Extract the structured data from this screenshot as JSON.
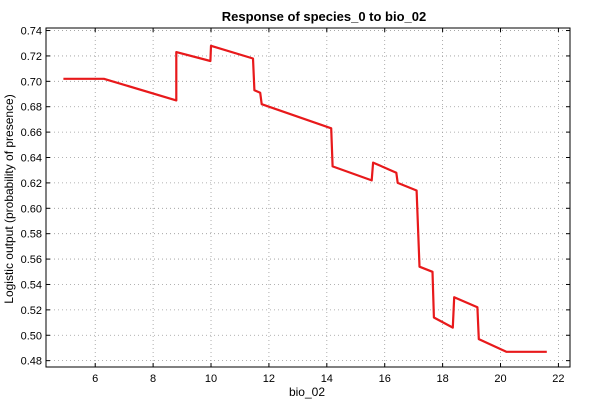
{
  "chart_data": {
    "type": "line",
    "title": "Response of species_0 to bio_02",
    "xlabel": "bio_02",
    "ylabel": "Logistic output (probability of presence)",
    "xlim": [
      4.3,
      22.4
    ],
    "ylim": [
      0.475,
      0.742
    ],
    "x_ticks": [
      6,
      8,
      10,
      12,
      14,
      16,
      18,
      20,
      22
    ],
    "y_ticks": [
      0.48,
      0.5,
      0.52,
      0.54,
      0.56,
      0.58,
      0.6,
      0.62,
      0.64,
      0.66,
      0.68,
      0.7,
      0.72,
      0.74
    ],
    "grid": true,
    "series": [
      {
        "color": "#e8191b",
        "x": [
          4.9,
          6.3,
          8.8,
          8.8,
          9.98,
          10.0,
          11.45,
          11.5,
          11.7,
          11.75,
          14.15,
          14.2,
          15.55,
          15.6,
          16.4,
          16.45,
          17.1,
          17.2,
          17.65,
          17.7,
          18.35,
          18.4,
          19.2,
          19.25,
          20.2,
          21.6
        ],
        "y": [
          0.702,
          0.702,
          0.685,
          0.723,
          0.716,
          0.728,
          0.718,
          0.693,
          0.691,
          0.682,
          0.663,
          0.633,
          0.622,
          0.636,
          0.628,
          0.62,
          0.614,
          0.554,
          0.55,
          0.514,
          0.506,
          0.53,
          0.522,
          0.497,
          0.487,
          0.487
        ]
      }
    ]
  }
}
